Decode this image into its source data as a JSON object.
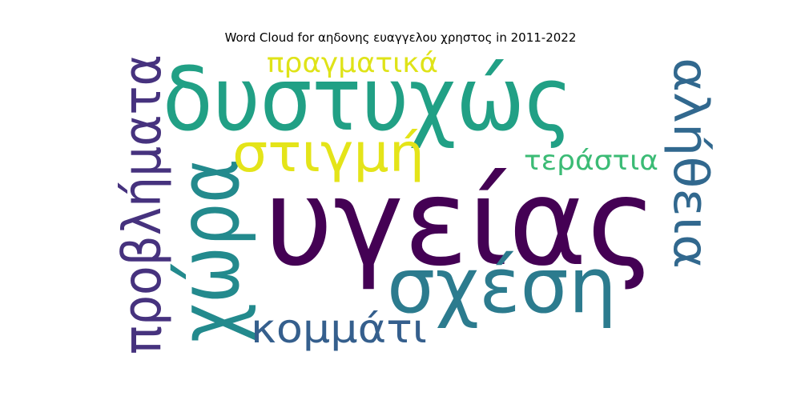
{
  "chart_data": {
    "type": "wordcloud",
    "title": "Word Cloud for αηδονης ευαγγελου χρηστος in 2011-2022",
    "words": [
      {
        "text": "υγείας",
        "color": "#440154"
      },
      {
        "text": "δυστυχώς",
        "color": "#21a085"
      },
      {
        "text": "σχέση",
        "color": "#2c7b8e"
      },
      {
        "text": "χώρα",
        "color": "#238a8d"
      },
      {
        "text": "προβλήματα",
        "color": "#46327e"
      },
      {
        "text": "στιγμή",
        "color": "#e4e419"
      },
      {
        "text": "αλήθεια",
        "color": "#31688e"
      },
      {
        "text": "κομμάτι",
        "color": "#355f8d"
      },
      {
        "text": "πραγματικά",
        "color": "#dfe318"
      },
      {
        "text": "τεράστια",
        "color": "#3bbb75"
      }
    ]
  }
}
